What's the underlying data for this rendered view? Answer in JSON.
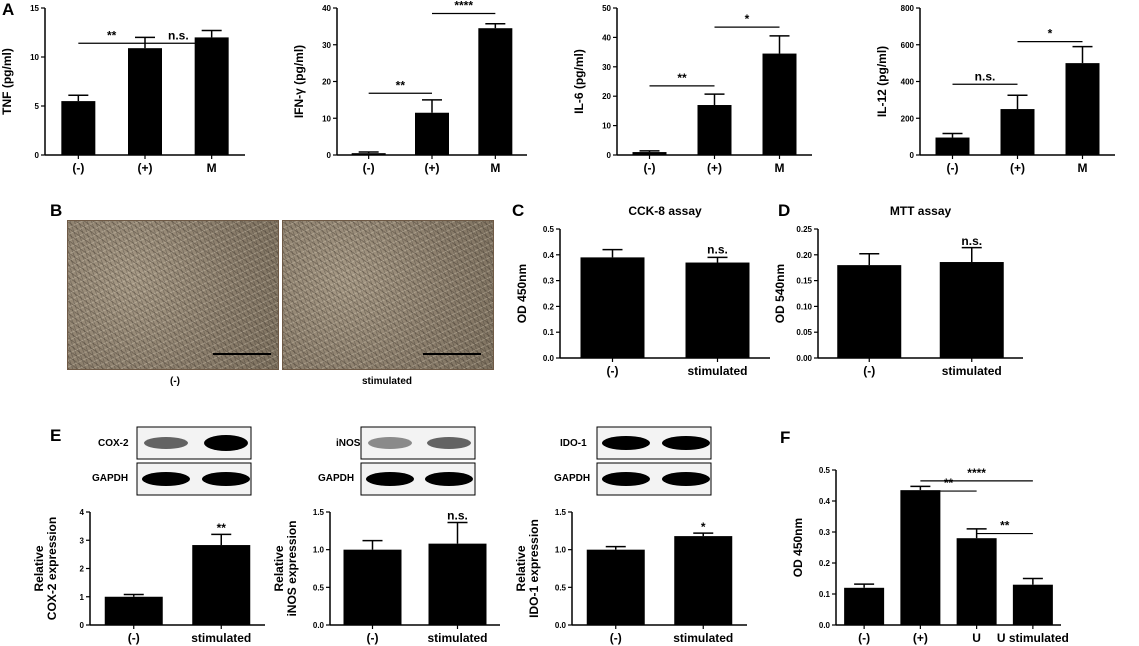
{
  "panel_labels": [
    "A",
    "B",
    "C",
    "D",
    "E",
    "F"
  ],
  "micrograph_labels": [
    "(-)",
    "stimulated"
  ],
  "blot_labels": {
    "cox2": [
      "COX-2",
      "GAPDH"
    ],
    "inos": [
      "iNOS",
      "GAPDH"
    ],
    "ido1": [
      "IDO-1",
      "GAPDH"
    ]
  },
  "chart_data": [
    {
      "id": "A1",
      "type": "bar",
      "title": "",
      "ylabel": "TNF (pg/ml)",
      "categories": [
        "(-)",
        "(+)",
        "M"
      ],
      "values": [
        5.5,
        10.9,
        12.0
      ],
      "errors": [
        0.6,
        1.1,
        0.7
      ],
      "ylim": [
        0,
        15
      ],
      "yticks": [
        "0",
        "5",
        "10",
        "15"
      ],
      "significance": [
        {
          "from": 0,
          "to": 1,
          "label": "**",
          "y": 11.4
        },
        {
          "from": 1,
          "to": 2,
          "label": "n.s.",
          "y": 11.4
        }
      ]
    },
    {
      "id": "A2",
      "type": "bar",
      "title": "",
      "ylabel": "IFN-γ (pg/ml)",
      "categories": [
        "(-)",
        "(+)",
        "M"
      ],
      "values": [
        0.5,
        11.5,
        34.5
      ],
      "errors": [
        0.3,
        3.5,
        1.2
      ],
      "ylim": [
        0,
        40
      ],
      "yticks": [
        "0",
        "10",
        "20",
        "30",
        "40"
      ],
      "significance": [
        {
          "from": 0,
          "to": 1,
          "label": "**",
          "y": 16.8
        },
        {
          "from": 1,
          "to": 2,
          "label": "****",
          "y": 38.5
        }
      ]
    },
    {
      "id": "A3",
      "type": "bar",
      "title": "",
      "ylabel": "IL-6 (pg/ml)",
      "categories": [
        "(-)",
        "(+)",
        "M"
      ],
      "values": [
        1,
        17,
        34.5
      ],
      "errors": [
        0.4,
        3.7,
        6.0
      ],
      "ylim": [
        0,
        50
      ],
      "yticks": [
        "0",
        "10",
        "20",
        "30",
        "40",
        "50"
      ],
      "significance": [
        {
          "from": 0,
          "to": 1,
          "label": "**",
          "y": 23.5
        },
        {
          "from": 1,
          "to": 2,
          "label": "*",
          "y": 43.5
        }
      ]
    },
    {
      "id": "A4",
      "type": "bar",
      "title": "",
      "ylabel": "IL-12 (pg/ml)",
      "categories": [
        "(-)",
        "(+)",
        "M"
      ],
      "values": [
        95,
        250,
        500
      ],
      "errors": [
        22,
        75,
        90
      ],
      "ylim": [
        0,
        800
      ],
      "yticks": [
        "0",
        "200",
        "400",
        "600",
        "800"
      ],
      "significance": [
        {
          "from": 0,
          "to": 1,
          "label": "n.s.",
          "y": 385
        },
        {
          "from": 1,
          "to": 2,
          "label": "*",
          "y": 617
        }
      ]
    },
    {
      "id": "C",
      "type": "bar",
      "title": "CCK-8 assay",
      "ylabel": "OD 450nm",
      "categories": [
        "(-)",
        "stimulated"
      ],
      "values": [
        0.39,
        0.37
      ],
      "errors": [
        0.03,
        0.02
      ],
      "ylim": [
        0,
        0.5
      ],
      "yticks": [
        "0.0",
        "0.1",
        "0.2",
        "0.3",
        "0.4",
        "0.5"
      ],
      "significance": [
        {
          "over": 1,
          "label": "n.s.",
          "y": 0.405
        }
      ]
    },
    {
      "id": "D",
      "type": "bar",
      "title": "MTT assay",
      "ylabel": "OD 540nm",
      "categories": [
        "(-)",
        "stimulated"
      ],
      "values": [
        0.18,
        0.186
      ],
      "errors": [
        0.022,
        0.028
      ],
      "ylim": [
        0,
        0.25
      ],
      "yticks": [
        "0.00",
        "0.05",
        "0.10",
        "0.15",
        "0.20",
        "0.25"
      ],
      "significance": [
        {
          "over": 1,
          "label": "n.s.",
          "y": 0.219
        }
      ]
    },
    {
      "id": "E1",
      "type": "bar",
      "title": "",
      "ylabel": [
        "Relative",
        "COX-2 expression"
      ],
      "categories": [
        "(-)",
        "stimulated"
      ],
      "values": [
        1.0,
        2.83
      ],
      "errors": [
        0.08,
        0.38
      ],
      "ylim": [
        0,
        4
      ],
      "yticks": [
        "0",
        "1",
        "2",
        "3",
        "4"
      ],
      "significance": [
        {
          "over": 1,
          "label": "**",
          "y": 3.3
        }
      ]
    },
    {
      "id": "E2",
      "type": "bar",
      "title": "",
      "ylabel": [
        "Relative",
        "iNOS expression"
      ],
      "categories": [
        "(-)",
        "stimulated"
      ],
      "values": [
        1.0,
        1.08
      ],
      "errors": [
        0.12,
        0.28
      ],
      "ylim": [
        0,
        1.5
      ],
      "yticks": [
        "0.0",
        "0.5",
        "1.0",
        "1.5"
      ],
      "significance": [
        {
          "over": 1,
          "label": "n.s.",
          "y": 1.4
        }
      ]
    },
    {
      "id": "E3",
      "type": "bar",
      "title": "",
      "ylabel": [
        "Relative",
        "IDO-1 expression"
      ],
      "categories": [
        "(-)",
        "stimulated"
      ],
      "values": [
        1.0,
        1.18
      ],
      "errors": [
        0.04,
        0.04
      ],
      "ylim": [
        0,
        1.5
      ],
      "yticks": [
        "0.0",
        "0.5",
        "1.0",
        "1.5"
      ],
      "significance": [
        {
          "over": 1,
          "label": "*",
          "y": 1.25
        }
      ]
    },
    {
      "id": "F",
      "type": "bar",
      "title": "",
      "ylabel": "OD 450nm",
      "categories": [
        "(-)",
        "(+)",
        "U",
        "U stimulated"
      ],
      "values": [
        0.12,
        0.435,
        0.28,
        0.13
      ],
      "errors": [
        0.012,
        0.012,
        0.03,
        0.02
      ],
      "ylim": [
        0,
        0.5
      ],
      "yticks": [
        "0.0",
        "0.1",
        "0.2",
        "0.3",
        "0.4",
        "0.5"
      ],
      "significance": [
        {
          "from": 1,
          "to": 3,
          "label": "****",
          "y": 0.465
        },
        {
          "from": 1,
          "to": 2,
          "label": "**",
          "y": 0.432
        },
        {
          "from": 2,
          "to": 3,
          "label": "**",
          "y": 0.295
        }
      ]
    }
  ]
}
